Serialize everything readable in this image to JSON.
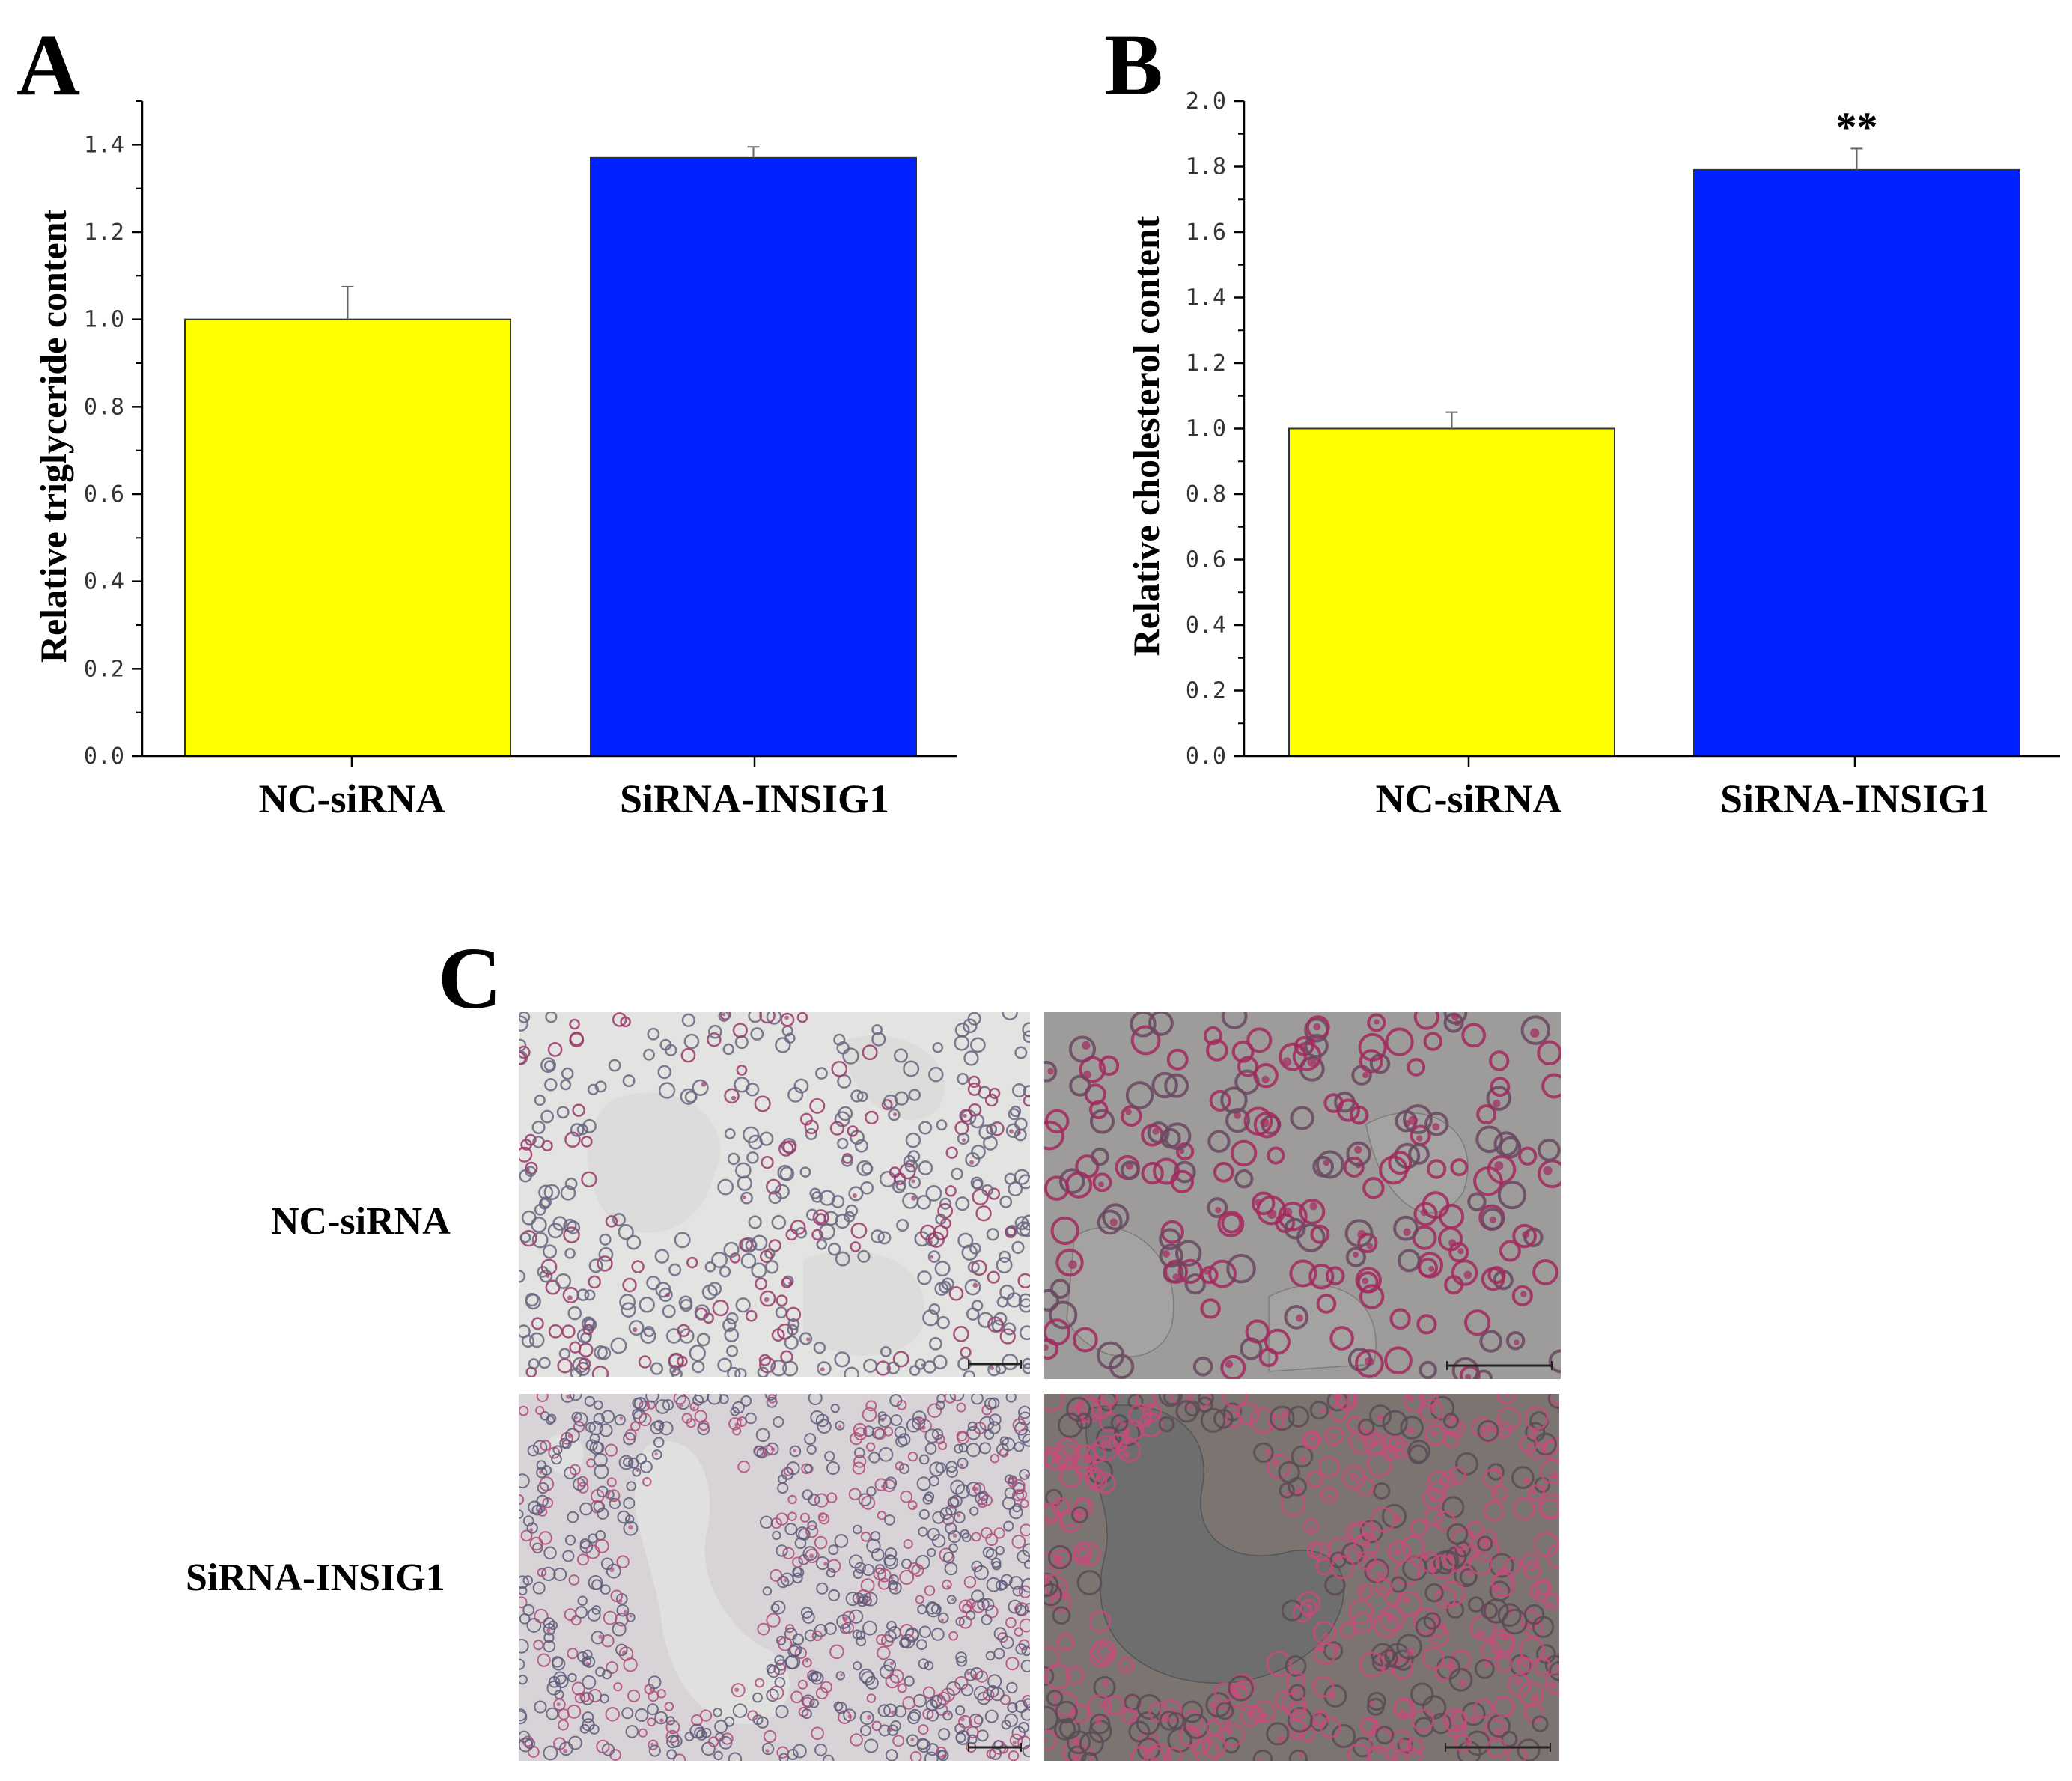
{
  "panels": {
    "a": {
      "letter": "A"
    },
    "b": {
      "letter": "B"
    },
    "c": {
      "letter": "C"
    }
  },
  "chart_data": [
    {
      "type": "bar",
      "panel": "A",
      "categories": [
        "NC-siRNA",
        "SiRNA-INSIG1"
      ],
      "values": [
        1.0,
        1.37
      ],
      "errors": [
        0.075,
        0.025
      ],
      "colors": [
        "#ffff00",
        "#0022ff"
      ],
      "ylabel": "Relative triglyceride content",
      "xlabel": "",
      "ylim": [
        0,
        1.5
      ],
      "yticks": [
        0.0,
        0.2,
        0.4,
        0.6,
        0.8,
        1.0,
        1.2,
        1.4
      ],
      "ytick_labels": [
        "0.0",
        "0.2",
        "0.4",
        "0.6",
        "0.8",
        "1.0",
        "1.2",
        "1.4"
      ],
      "annotations": [
        "",
        ""
      ],
      "grid": false
    },
    {
      "type": "bar",
      "panel": "B",
      "categories": [
        "NC-siRNA",
        "SiRNA-INSIG1"
      ],
      "values": [
        1.0,
        1.79
      ],
      "errors": [
        0.05,
        0.065
      ],
      "colors": [
        "#ffff00",
        "#0022ff"
      ],
      "ylabel": "Relative cholesterol content",
      "xlabel": "",
      "ylim": [
        0,
        2.0
      ],
      "yticks": [
        0.0,
        0.2,
        0.4,
        0.6,
        0.8,
        1.0,
        1.2,
        1.4,
        1.6,
        1.8,
        2.0
      ],
      "ytick_labels": [
        "0.0",
        "0.2",
        "0.4",
        "0.6",
        "0.8",
        "1.0",
        "1.2",
        "1.4",
        "1.6",
        "1.8",
        "2.0"
      ],
      "annotations": [
        "",
        "**"
      ],
      "grid": false
    }
  ],
  "micrographs": {
    "rows": [
      {
        "label": "NC-siRNA"
      },
      {
        "label": "SiRNA-INSIG1"
      }
    ]
  }
}
